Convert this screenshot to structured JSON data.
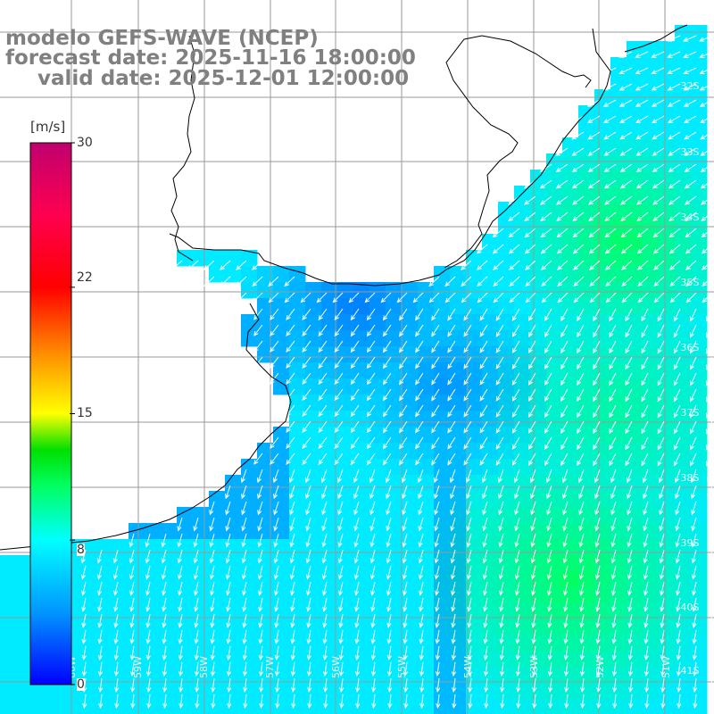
{
  "title": {
    "line1": "modelo GEFS-WAVE (NCEP)",
    "line2": "forecast date: 2025-11-16 18:00:00",
    "line3": "valid date: 2025-12-01 12:00:00"
  },
  "colorbar": {
    "unit": "[m/s]",
    "ticks": [
      {
        "value": 30,
        "label": "30"
      },
      {
        "value": 22,
        "label": "22"
      },
      {
        "value": 15,
        "label": "15"
      },
      {
        "value": 8,
        "label": "8"
      },
      {
        "value": 0,
        "label": "0"
      }
    ],
    "min": 0,
    "max": 30,
    "stops": [
      {
        "value": 0,
        "color": "#0000ff"
      },
      {
        "value": 4,
        "color": "#0096ff"
      },
      {
        "value": 8,
        "color": "#00ffff"
      },
      {
        "value": 11,
        "color": "#00ff60"
      },
      {
        "value": 13,
        "color": "#00e000"
      },
      {
        "value": 15,
        "color": "#ffff00"
      },
      {
        "value": 18,
        "color": "#ff9900"
      },
      {
        "value": 22,
        "color": "#ff0000"
      },
      {
        "value": 26,
        "color": "#ff0050"
      },
      {
        "value": 30,
        "color": "#c0006e"
      }
    ]
  },
  "map": {
    "lat_labels": [
      "32S",
      "33S",
      "34S",
      "35S",
      "36S",
      "37S",
      "38S",
      "39S",
      "40S",
      "41S"
    ],
    "lon_labels": [
      "60W",
      "59W",
      "58W",
      "57W",
      "56W",
      "55W",
      "54W",
      "53W",
      "52W",
      "51W"
    ],
    "land_color": "#ffffff",
    "grid_color": "#999999",
    "coast_color": "#000000",
    "arrow_color": "#ffffff"
  }
}
